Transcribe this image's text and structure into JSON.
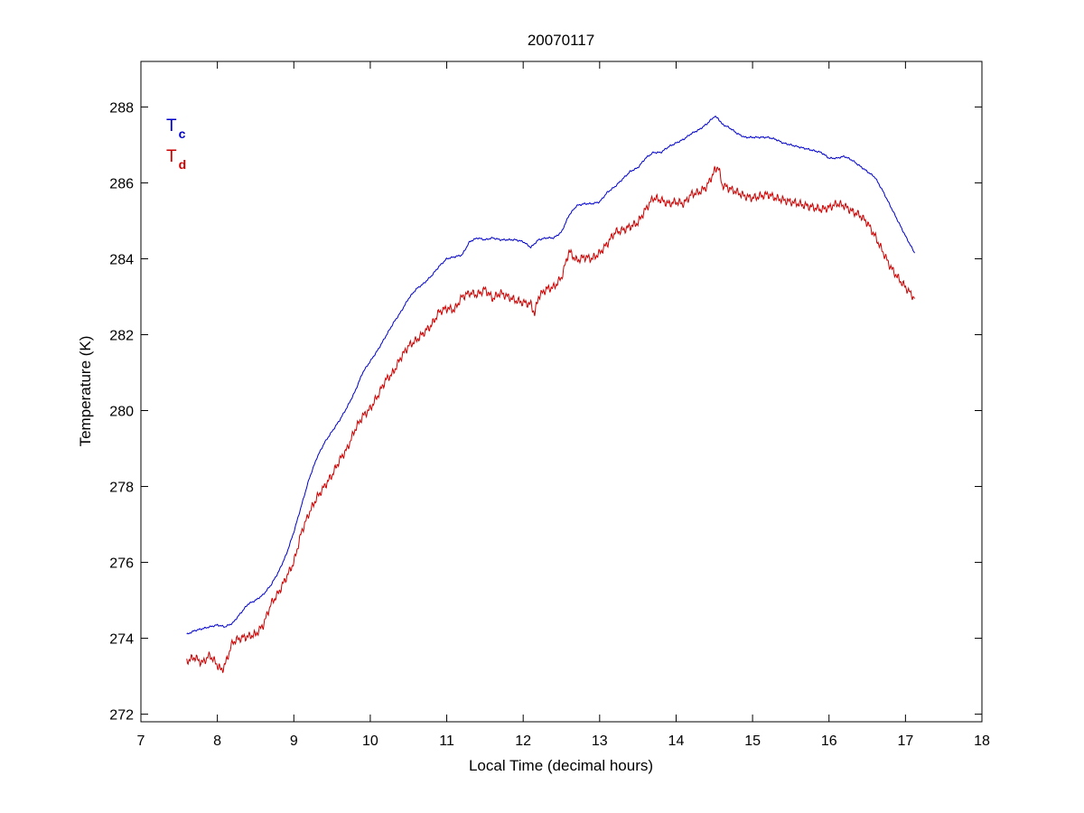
{
  "chart_data": {
    "type": "line",
    "title": "20070117",
    "xlabel": "Local Time (decimal hours)",
    "ylabel": "Temperature (K)",
    "xlim": [
      7,
      18
    ],
    "ylim": [
      271.8,
      289.2
    ],
    "xticks": [
      7,
      8,
      9,
      10,
      11,
      12,
      13,
      14,
      15,
      16,
      17,
      18
    ],
    "yticks": [
      272,
      274,
      276,
      278,
      280,
      282,
      284,
      286,
      288
    ],
    "grid": false,
    "legend_placement": "top-left",
    "series": [
      {
        "name": "T",
        "subscript": "c",
        "color": "#0000cc",
        "x": [
          7.6,
          7.7,
          7.8,
          7.9,
          8.0,
          8.1,
          8.2,
          8.3,
          8.4,
          8.5,
          8.6,
          8.7,
          8.8,
          8.9,
          9.0,
          9.1,
          9.2,
          9.3,
          9.4,
          9.5,
          9.6,
          9.7,
          9.8,
          9.9,
          10.0,
          10.1,
          10.2,
          10.3,
          10.4,
          10.5,
          10.6,
          10.7,
          10.8,
          10.9,
          11.0,
          11.1,
          11.2,
          11.3,
          11.4,
          11.5,
          11.6,
          11.7,
          11.8,
          11.9,
          12.0,
          12.1,
          12.2,
          12.3,
          12.4,
          12.5,
          12.6,
          12.7,
          12.8,
          12.9,
          13.0,
          13.1,
          13.2,
          13.3,
          13.4,
          13.5,
          13.6,
          13.7,
          13.8,
          13.9,
          14.0,
          14.1,
          14.2,
          14.3,
          14.4,
          14.5,
          14.55,
          14.6,
          14.7,
          14.8,
          14.9,
          15.0,
          15.1,
          15.2,
          15.3,
          15.4,
          15.5,
          15.6,
          15.7,
          15.8,
          15.9,
          16.0,
          16.1,
          16.2,
          16.3,
          16.4,
          16.5,
          16.6,
          16.7,
          16.8,
          16.9,
          17.0,
          17.12
        ],
        "y": [
          274.1,
          274.2,
          274.25,
          274.3,
          274.35,
          274.3,
          274.4,
          274.65,
          274.9,
          275.0,
          275.15,
          275.4,
          275.75,
          276.2,
          276.8,
          277.5,
          278.2,
          278.75,
          279.15,
          279.45,
          279.75,
          280.1,
          280.5,
          281.0,
          281.3,
          281.6,
          281.95,
          282.3,
          282.6,
          282.95,
          283.2,
          283.35,
          283.55,
          283.8,
          284.0,
          284.05,
          284.1,
          284.45,
          284.55,
          284.5,
          284.55,
          284.5,
          284.5,
          284.5,
          284.45,
          284.3,
          284.5,
          284.55,
          284.55,
          284.7,
          285.15,
          285.4,
          285.45,
          285.45,
          285.5,
          285.75,
          285.9,
          286.1,
          286.3,
          286.4,
          286.65,
          286.8,
          286.8,
          286.95,
          287.05,
          287.15,
          287.3,
          287.4,
          287.55,
          287.75,
          287.7,
          287.55,
          287.45,
          287.3,
          287.2,
          287.2,
          287.2,
          287.2,
          287.15,
          287.05,
          287.0,
          286.95,
          286.9,
          286.85,
          286.8,
          286.65,
          286.65,
          286.7,
          286.6,
          286.45,
          286.3,
          286.15,
          285.8,
          285.4,
          285.0,
          284.6,
          284.15
        ]
      },
      {
        "name": "T",
        "subscript": "d",
        "color": "#cc0000",
        "x": [
          7.6,
          7.7,
          7.8,
          7.9,
          8.0,
          8.05,
          8.1,
          8.2,
          8.3,
          8.4,
          8.5,
          8.6,
          8.7,
          8.8,
          8.9,
          9.0,
          9.1,
          9.2,
          9.3,
          9.4,
          9.5,
          9.6,
          9.7,
          9.8,
          9.9,
          10.0,
          10.1,
          10.2,
          10.3,
          10.4,
          10.5,
          10.6,
          10.7,
          10.8,
          10.9,
          11.0,
          11.1,
          11.2,
          11.3,
          11.4,
          11.5,
          11.6,
          11.7,
          11.8,
          11.9,
          12.0,
          12.1,
          12.15,
          12.2,
          12.3,
          12.4,
          12.5,
          12.6,
          12.7,
          12.8,
          12.9,
          13.0,
          13.1,
          13.2,
          13.3,
          13.4,
          13.5,
          13.6,
          13.7,
          13.8,
          13.9,
          14.0,
          14.1,
          14.2,
          14.3,
          14.4,
          14.5,
          14.55,
          14.6,
          14.7,
          14.8,
          14.9,
          15.0,
          15.1,
          15.2,
          15.3,
          15.4,
          15.5,
          15.6,
          15.7,
          15.8,
          15.9,
          16.0,
          16.1,
          16.2,
          16.3,
          16.4,
          16.5,
          16.6,
          16.7,
          16.8,
          16.9,
          17.0,
          17.12
        ],
        "y": [
          273.4,
          273.5,
          273.35,
          273.55,
          273.3,
          273.15,
          273.3,
          273.9,
          274.0,
          274.05,
          274.1,
          274.35,
          274.9,
          275.2,
          275.6,
          276.0,
          276.8,
          277.3,
          277.7,
          278.0,
          278.3,
          278.7,
          279.0,
          279.5,
          279.85,
          280.05,
          280.4,
          280.8,
          281.0,
          281.4,
          281.7,
          281.85,
          282.05,
          282.25,
          282.6,
          282.7,
          282.65,
          283.0,
          283.1,
          283.05,
          283.2,
          282.95,
          283.1,
          283.0,
          282.9,
          282.85,
          282.8,
          282.55,
          283.0,
          283.2,
          283.25,
          283.5,
          284.2,
          283.95,
          284.05,
          284.0,
          284.15,
          284.4,
          284.7,
          284.75,
          284.85,
          284.95,
          285.3,
          285.6,
          285.55,
          285.45,
          285.5,
          285.45,
          285.7,
          285.75,
          285.9,
          286.3,
          286.45,
          285.95,
          285.85,
          285.75,
          285.65,
          285.6,
          285.65,
          285.7,
          285.6,
          285.55,
          285.5,
          285.45,
          285.4,
          285.35,
          285.3,
          285.35,
          285.45,
          285.4,
          285.25,
          285.15,
          284.95,
          284.6,
          284.2,
          283.8,
          283.5,
          283.25,
          282.95
        ]
      }
    ]
  }
}
